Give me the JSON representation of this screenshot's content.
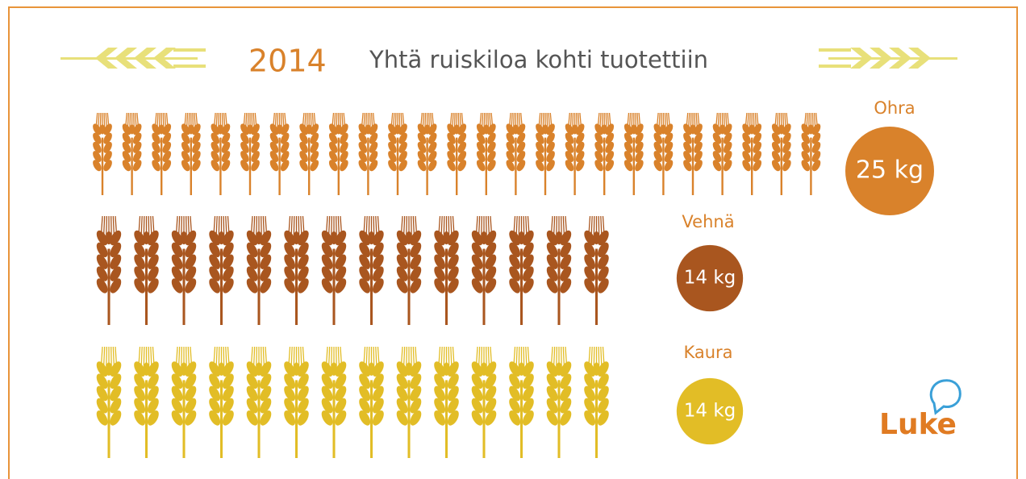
{
  "chart_data": {
    "type": "pictogram",
    "year": "2014",
    "title": "Yhtä ruiskiloa kohti tuotettiin",
    "categories": [
      "Ohra",
      "Vehnä",
      "Kaura"
    ],
    "values": [
      25,
      14,
      14
    ],
    "value_labels": [
      "25 kg",
      "14 kg",
      "14 kg"
    ],
    "colors": [
      "#d9822b",
      "#a9561f",
      "#e2bd26"
    ]
  },
  "logo": "Luke"
}
